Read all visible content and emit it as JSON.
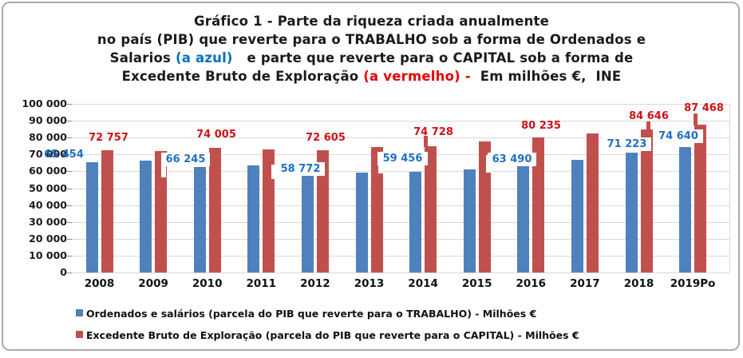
{
  "colors": {
    "bar_blue": "#4F81BD",
    "bar_red": "#C0504D",
    "label_blue": "#1F6FC5",
    "label_red": "#D01217",
    "title_blue": "#0070C0",
    "title_red": "#E80000",
    "text": "#1A1A1A",
    "grid": "#D9D9D9"
  },
  "title": {
    "lines": [
      {
        "segments": [
          {
            "t": "Gráfico 1 - Parte da riqueza criada anualmente",
            "c": "text"
          }
        ]
      },
      {
        "segments": [
          {
            "t": "no país (PIB) que reverte para o TRABALHO sob a forma de Ordenados e",
            "c": "text"
          }
        ]
      },
      {
        "segments": [
          {
            "t": "Salarios ",
            "c": "text"
          },
          {
            "t": "(a azul)",
            "c": "title_blue"
          },
          {
            "t": "   e parte que reverte para o CAPITAL sob a forma de",
            "c": "text"
          }
        ]
      },
      {
        "segments": [
          {
            "t": "Excedente Bruto de Exploração ",
            "c": "text"
          },
          {
            "t": "(a vermelho) -",
            "c": "title_red"
          },
          {
            "t": "  Em milhões €,  INE",
            "c": "text"
          }
        ]
      }
    ]
  },
  "y_axis": {
    "ticks": [
      "100 000",
      "90 000",
      "80 000",
      "70 000",
      "60 000",
      "50 000",
      "40 000",
      "30 000",
      "20 000",
      "10 000",
      "0"
    ]
  },
  "chart_data": {
    "type": "bar",
    "title": "Gráfico 1 - Parte da riqueza criada anualmente no país (PIB) que reverte para o TRABALHO sob a forma de Ordenados e Salarios (a azul) e parte que reverte para o CAPITAL sob a forma de Excedente Bruto de Exploração (a vermelho) - Em milhões €, INE",
    "categories": [
      "2008",
      "2009",
      "2010",
      "2011",
      "2012",
      "2013",
      "2014",
      "2015",
      "2016",
      "2017",
      "2018",
      "2019Po"
    ],
    "series": [
      {
        "name": "Ordenados e salários (parcela do PIB que reverte para o TRABALHO) - Milhões €",
        "color": "#4F81BD",
        "values": [
          65454,
          66245,
          62600,
          63600,
          58772,
          59456,
          59700,
          61300,
          63490,
          66800,
          71223,
          74640
        ],
        "labels": [
          {
            "i": 0,
            "text": "65 454"
          },
          {
            "i": 1,
            "text": "66 245"
          },
          {
            "i": 4,
            "text": "58 772"
          },
          {
            "i": 5,
            "text": "59 456"
          },
          {
            "i": 8,
            "text": "63 490"
          },
          {
            "i": 10,
            "text": "71 223"
          },
          {
            "i": 11,
            "text": "74 640"
          }
        ]
      },
      {
        "name": "Excedente Bruto de Exploração (parcela do PIB que reverte para o CAPITAL) - Milhões €",
        "color": "#C0504D",
        "values": [
          72757,
          72000,
          74005,
          73100,
          72605,
          74300,
          74728,
          77600,
          80235,
          82600,
          84646,
          87468
        ],
        "labels": [
          {
            "i": 0,
            "text": "72 757"
          },
          {
            "i": 2,
            "text": "74 005"
          },
          {
            "i": 4,
            "text": "72 605"
          },
          {
            "i": 6,
            "text": "74 728"
          },
          {
            "i": 8,
            "text": "80 235"
          },
          {
            "i": 10,
            "text": "84 646"
          },
          {
            "i": 11,
            "text": "87 468"
          }
        ]
      }
    ],
    "ylim": [
      0,
      100000
    ],
    "ytick_step": 10000,
    "grid": "horizontal",
    "legend_position": "bottom"
  },
  "legend": {
    "items": [
      {
        "label": "Ordenados e salários (parcela do PIB que reverte para o TRABALHO) - Milhões €",
        "color": "#4F81BD"
      },
      {
        "label": "Excedente Bruto de Exploração (parcela do PIB que reverte para o CAPITAL) - Milhões €",
        "color": "#C0504D"
      }
    ]
  }
}
